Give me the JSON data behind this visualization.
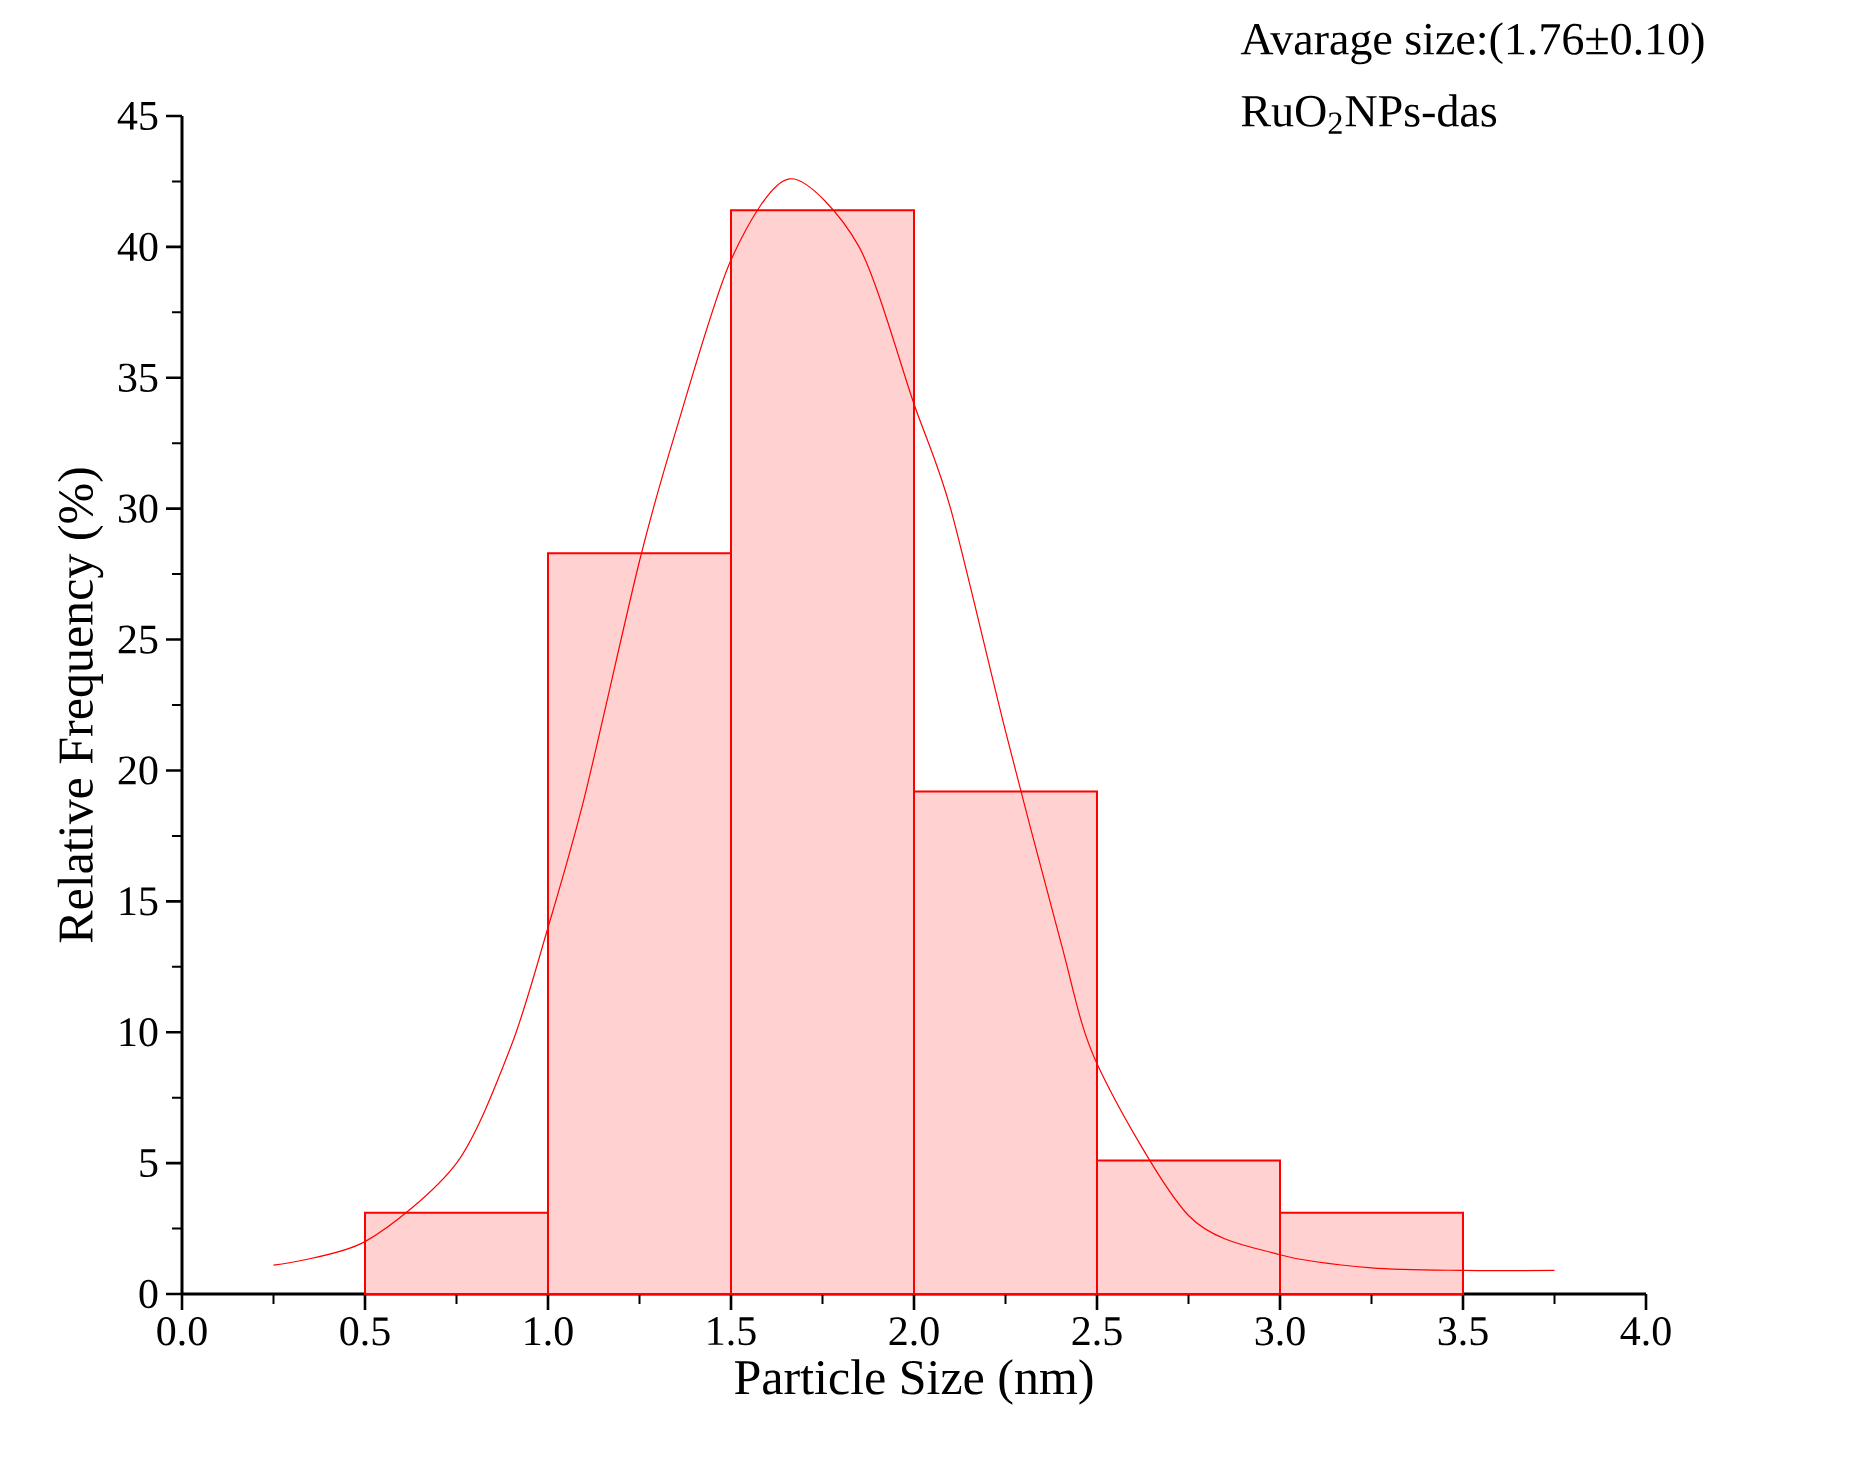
{
  "chart_data": {
    "type": "histogram",
    "xlabel": "Particle Size (nm)",
    "ylabel": "Relative Frequency (%)",
    "annotations": [
      "Avarage size:(1.76±0.10)",
      "RuO$_{2}$NPs-das"
    ],
    "bins": [
      0.5,
      1.0,
      1.5,
      2.0,
      2.5,
      3.0,
      3.5
    ],
    "values": [
      3.1,
      28.3,
      41.4,
      19.2,
      5.1,
      3.1
    ],
    "color": "#ff0000",
    "series": [
      {
        "type": "line",
        "color": "#ff0000",
        "x": [
          0.25,
          0.5,
          0.75,
          0.9,
          1.0,
          1.1,
          1.25,
          1.35,
          1.5,
          1.66,
          1.85,
          2.0,
          2.1,
          2.25,
          2.4,
          2.5,
          2.75,
          3.0,
          3.25,
          3.5,
          3.75
        ],
        "values": [
          1.1,
          2.0,
          5.0,
          9.5,
          14,
          19,
          28,
          33,
          39.5,
          42.6,
          40,
          34,
          30,
          21.5,
          13.5,
          8.8,
          3,
          1.5,
          1.0,
          0.9,
          0.9
        ]
      }
    ],
    "xlim": [
      0,
      4
    ],
    "ylim": [
      0,
      45
    ],
    "xticks": [
      {
        "value": 0,
        "label": "0.0"
      },
      0.5,
      {
        "value": 1,
        "label": "1.0"
      },
      1.5,
      {
        "value": 2,
        "label": "2.0"
      },
      2.5,
      {
        "value": 3,
        "label": "3.0"
      },
      3.5,
      {
        "value": 4,
        "label": "4.0"
      }
    ],
    "yticks": [
      0,
      5,
      10,
      15,
      20,
      25,
      30,
      35,
      40,
      45
    ]
  }
}
